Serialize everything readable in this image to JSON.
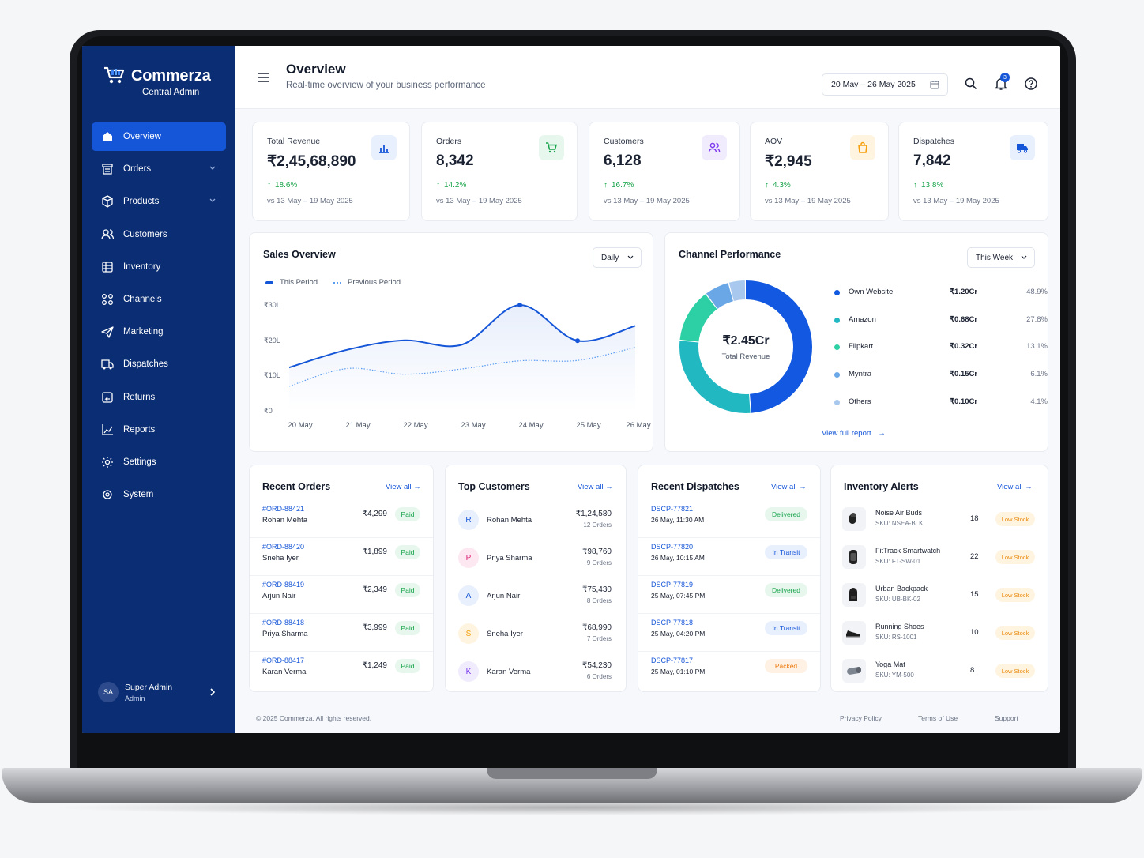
{
  "brand": {
    "name": "Commerza",
    "sub": "Central Admin"
  },
  "nav": [
    {
      "label": "Overview",
      "icon": "home-icon",
      "active": true
    },
    {
      "label": "Orders",
      "icon": "orders-icon",
      "chevron": true
    },
    {
      "label": "Products",
      "icon": "box-icon",
      "chevron": true
    },
    {
      "label": "Customers",
      "icon": "users-icon"
    },
    {
      "label": "Inventory",
      "icon": "inventory-icon"
    },
    {
      "label": "Channels",
      "icon": "channels-icon"
    },
    {
      "label": "Marketing",
      "icon": "send-icon"
    },
    {
      "label": "Dispatches",
      "icon": "truck-icon"
    },
    {
      "label": "Returns",
      "icon": "returns-icon"
    },
    {
      "label": "Reports",
      "icon": "chart-icon"
    },
    {
      "label": "Settings",
      "icon": "gear-icon"
    },
    {
      "label": "System",
      "icon": "system-gear-icon"
    }
  ],
  "user": {
    "initials": "SA",
    "name": "Super Admin",
    "role": "Admin"
  },
  "header": {
    "title": "Overview",
    "subtitle": "Real-time overview of your business performance",
    "date_range": "20 May – 26 May 2025",
    "notifications": "3"
  },
  "kpis": [
    {
      "label": "Total Revenue",
      "value": "₹2,45,68,890",
      "change": "18.6%",
      "compare": "vs 13 May – 19 May 2025",
      "icon": "bar-chart-icon",
      "color": "#1556d8",
      "bg": "#e8f0fe"
    },
    {
      "label": "Orders",
      "value": "8,342",
      "change": "14.2%",
      "compare": "vs 13 May – 19 May 2025",
      "icon": "cart-icon",
      "color": "#16a34a",
      "bg": "#e7f7ee"
    },
    {
      "label": "Customers",
      "value": "6,128",
      "change": "16.7%",
      "compare": "vs 13 May – 19 May 2025",
      "icon": "users-icon",
      "color": "#7c3aed",
      "bg": "#f1ebfe"
    },
    {
      "label": "AOV",
      "value": "₹2,945",
      "change": "4.3%",
      "compare": "vs 13 May – 19 May 2025",
      "icon": "bag-icon",
      "color": "#f59e0b",
      "bg": "#fff4e0"
    },
    {
      "label": "Dispatches",
      "value": "7,842",
      "change": "13.8%",
      "compare": "vs 13 May – 19 May 2025",
      "icon": "truck-icon",
      "color": "#1556d8",
      "bg": "#e8f0fe"
    }
  ],
  "sales": {
    "title": "Sales Overview",
    "period_select": "Daily"
  },
  "chart_data": {
    "type": "line",
    "title": "Sales Overview",
    "x": [
      "20 May",
      "21 May",
      "22 May",
      "23 May",
      "24 May",
      "25 May",
      "26 May"
    ],
    "series": [
      {
        "name": "This Period",
        "values": [
          12.5,
          17.5,
          20.2,
          19.0,
          30.2,
          20.1,
          24.3
        ],
        "color": "#1556d8",
        "style": "solid"
      },
      {
        "name": "Previous Period",
        "values": [
          7.2,
          12.2,
          10.6,
          12.1,
          14.4,
          14.5,
          18.2
        ],
        "color": "#5b9cf0",
        "style": "dotted"
      }
    ],
    "ylabels": [
      "₹0",
      "₹10L",
      "₹20L",
      "₹30L"
    ],
    "ylim": [
      0,
      30
    ],
    "grid": false,
    "legend": "top-left"
  },
  "channels": {
    "title": "Channel Performance",
    "period_select": "This Week",
    "total": "₹2.45Cr",
    "total_label": "Total Revenue",
    "link": "View full report",
    "items": [
      {
        "name": "Own Website",
        "value": "₹1.20Cr",
        "pct": "48.9%",
        "share": 48.9,
        "color": "#1258e0"
      },
      {
        "name": "Amazon",
        "value": "₹0.68Cr",
        "pct": "27.8%",
        "share": 27.8,
        "color": "#22b8c2"
      },
      {
        "name": "Flipkart",
        "value": "₹0.32Cr",
        "pct": "13.1%",
        "share": 13.1,
        "color": "#2cd0a4"
      },
      {
        "name": "Myntra",
        "value": "₹0.15Cr",
        "pct": "6.1%",
        "share": 6.1,
        "color": "#6aa7e6"
      },
      {
        "name": "Others",
        "value": "₹0.10Cr",
        "pct": "4.1%",
        "share": 4.1,
        "color": "#a9c8ee"
      }
    ]
  },
  "recent_orders": {
    "title": "Recent Orders",
    "view_all": "View all",
    "rows": [
      {
        "id": "#ORD-88421",
        "name": "Rohan Mehta",
        "amount": "₹4,299",
        "status": "Paid"
      },
      {
        "id": "#ORD-88420",
        "name": "Sneha Iyer",
        "amount": "₹1,899",
        "status": "Paid"
      },
      {
        "id": "#ORD-88419",
        "name": "Arjun Nair",
        "amount": "₹2,349",
        "status": "Paid"
      },
      {
        "id": "#ORD-88418",
        "name": "Priya Sharma",
        "amount": "₹3,999",
        "status": "Paid"
      },
      {
        "id": "#ORD-88417",
        "name": "Karan Verma",
        "amount": "₹1,249",
        "status": "Paid"
      }
    ]
  },
  "top_customers": {
    "title": "Top Customers",
    "view_all": "View all",
    "rows": [
      {
        "initial": "R",
        "name": "Rohan Mehta",
        "amount": "₹1,24,580",
        "orders": "12 Orders",
        "color": "#1556d8",
        "bg": "#e8f0fe"
      },
      {
        "initial": "P",
        "name": "Priya Sharma",
        "amount": "₹98,760",
        "orders": "9 Orders",
        "color": "#db2777",
        "bg": "#fde8f2"
      },
      {
        "initial": "A",
        "name": "Arjun Nair",
        "amount": "₹75,430",
        "orders": "8 Orders",
        "color": "#1556d8",
        "bg": "#e8f0fe"
      },
      {
        "initial": "S",
        "name": "Sneha Iyer",
        "amount": "₹68,990",
        "orders": "7 Orders",
        "color": "#f59e0b",
        "bg": "#fff4e0"
      },
      {
        "initial": "K",
        "name": "Karan Verma",
        "amount": "₹54,230",
        "orders": "6 Orders",
        "color": "#7c3aed",
        "bg": "#f1ebfe"
      }
    ]
  },
  "recent_dispatches": {
    "title": "Recent Dispatches",
    "view_all": "View all",
    "rows": [
      {
        "id": "DSCP-77821",
        "time": "26 May, 11:30 AM",
        "status": "Delivered",
        "color": "#16a34a",
        "bg": "#e7f7ee"
      },
      {
        "id": "DSCP-77820",
        "time": "26 May, 10:15 AM",
        "status": "In Transit",
        "color": "#1556d8",
        "bg": "#e8f0fe"
      },
      {
        "id": "DSCP-77819",
        "time": "25 May, 07:45 PM",
        "status": "Delivered",
        "color": "#16a34a",
        "bg": "#e7f7ee"
      },
      {
        "id": "DSCP-77818",
        "time": "25 May, 04:20 PM",
        "status": "In Transit",
        "color": "#1556d8",
        "bg": "#e8f0fe"
      },
      {
        "id": "DSCP-77817",
        "time": "25 May, 01:10 PM",
        "status": "Packed",
        "color": "#ea7a0c",
        "bg": "#fff1e3"
      }
    ]
  },
  "inventory_alerts": {
    "title": "Inventory Alerts",
    "view_all": "View all",
    "rows": [
      {
        "name": "Noise Air Buds",
        "sku": "SKU: NSEA-BLK",
        "qty": "18",
        "status": "Low Stock",
        "icon": "earbuds-icon"
      },
      {
        "name": "FitTrack Smartwatch",
        "sku": "SKU: FT-SW-01",
        "qty": "22",
        "status": "Low Stock",
        "icon": "watch-icon"
      },
      {
        "name": "Urban Backpack",
        "sku": "SKU: UB-BK-02",
        "qty": "15",
        "status": "Low Stock",
        "icon": "backpack-icon"
      },
      {
        "name": "Running Shoes",
        "sku": "SKU: RS-1001",
        "qty": "10",
        "status": "Low Stock",
        "icon": "shoe-icon"
      },
      {
        "name": "Yoga Mat",
        "sku": "SKU: YM-500",
        "qty": "8",
        "status": "Low Stock",
        "icon": "mat-icon"
      }
    ]
  },
  "footer": {
    "copyright": "© 2025 Commerza. All rights reserved.",
    "links": [
      "Privacy Policy",
      "Terms of Use",
      "Support"
    ]
  }
}
